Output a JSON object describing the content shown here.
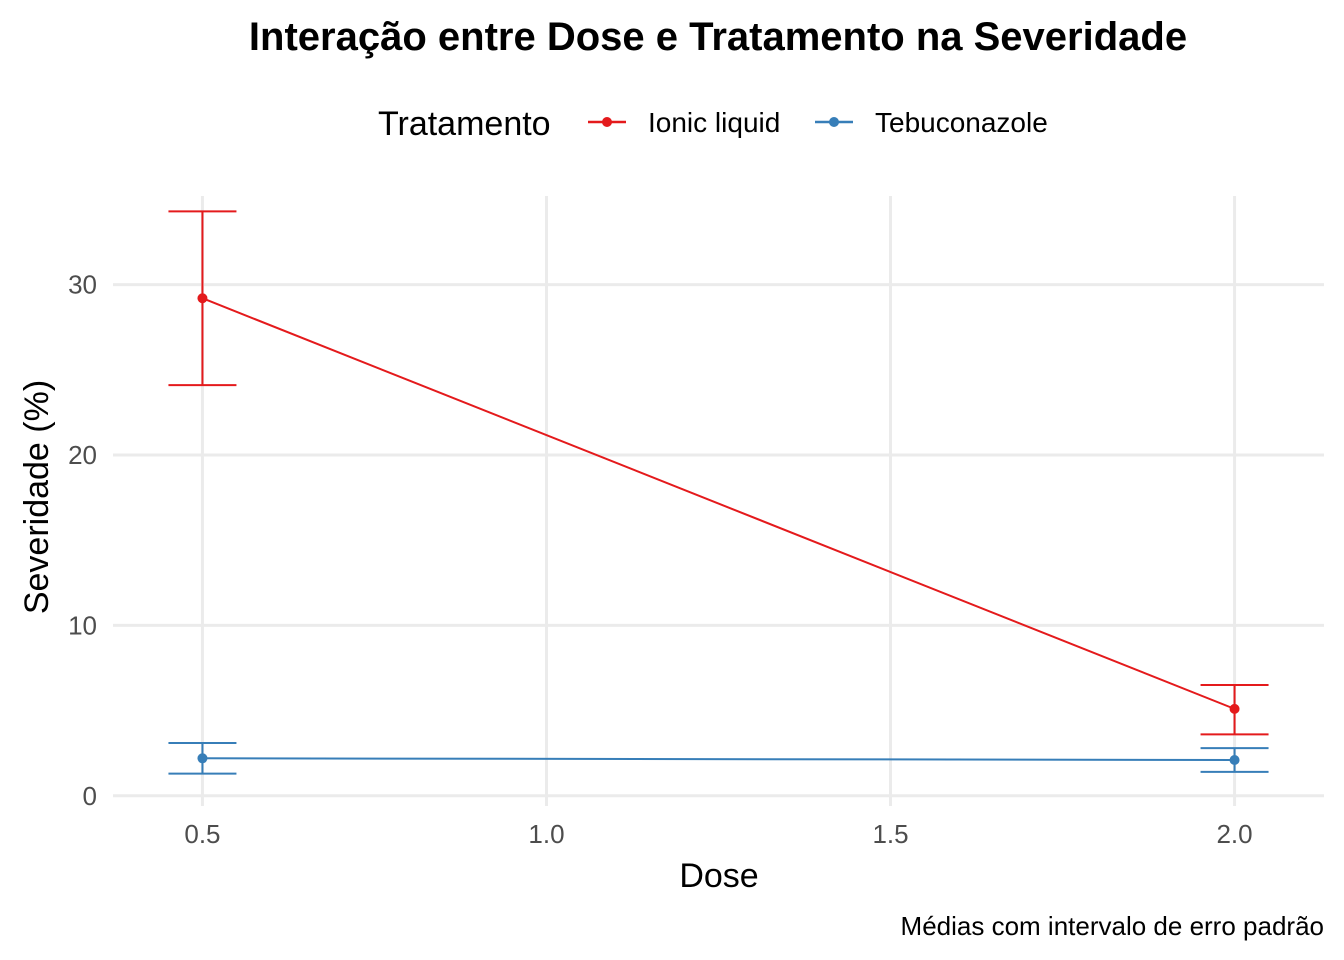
{
  "chart_data": {
    "type": "line",
    "title": "Interação entre Dose e Tratamento na Severidade",
    "xlabel": "Dose",
    "ylabel": "Severidade (%)",
    "caption": "Médias com intervalo de erro padrão",
    "legend": {
      "title": "Tratamento",
      "position": "top"
    },
    "xlim": [
      0.37,
      2.13
    ],
    "ylim": [
      -0.6,
      35.2
    ],
    "xticks": [
      0.5,
      1.0,
      1.5,
      2.0
    ],
    "xtick_labels": [
      "0.5",
      "1.0",
      "1.5",
      "2.0"
    ],
    "yticks": [
      0,
      10,
      20,
      30
    ],
    "ytick_labels": [
      "0",
      "10",
      "20",
      "30"
    ],
    "grid": true,
    "series": [
      {
        "name": "Ionic liquid",
        "color": "#e41a1c",
        "points": [
          {
            "x": 0.5,
            "y": 29.2,
            "ymin": 24.1,
            "ymax": 34.3
          },
          {
            "x": 2.0,
            "y": 5.1,
            "ymin": 3.6,
            "ymax": 6.5
          }
        ]
      },
      {
        "name": "Tebuconazole",
        "color": "#377eb8",
        "points": [
          {
            "x": 0.5,
            "y": 2.2,
            "ymin": 1.3,
            "ymax": 3.1
          },
          {
            "x": 2.0,
            "y": 2.1,
            "ymin": 1.4,
            "ymax": 2.8
          }
        ]
      }
    ]
  }
}
